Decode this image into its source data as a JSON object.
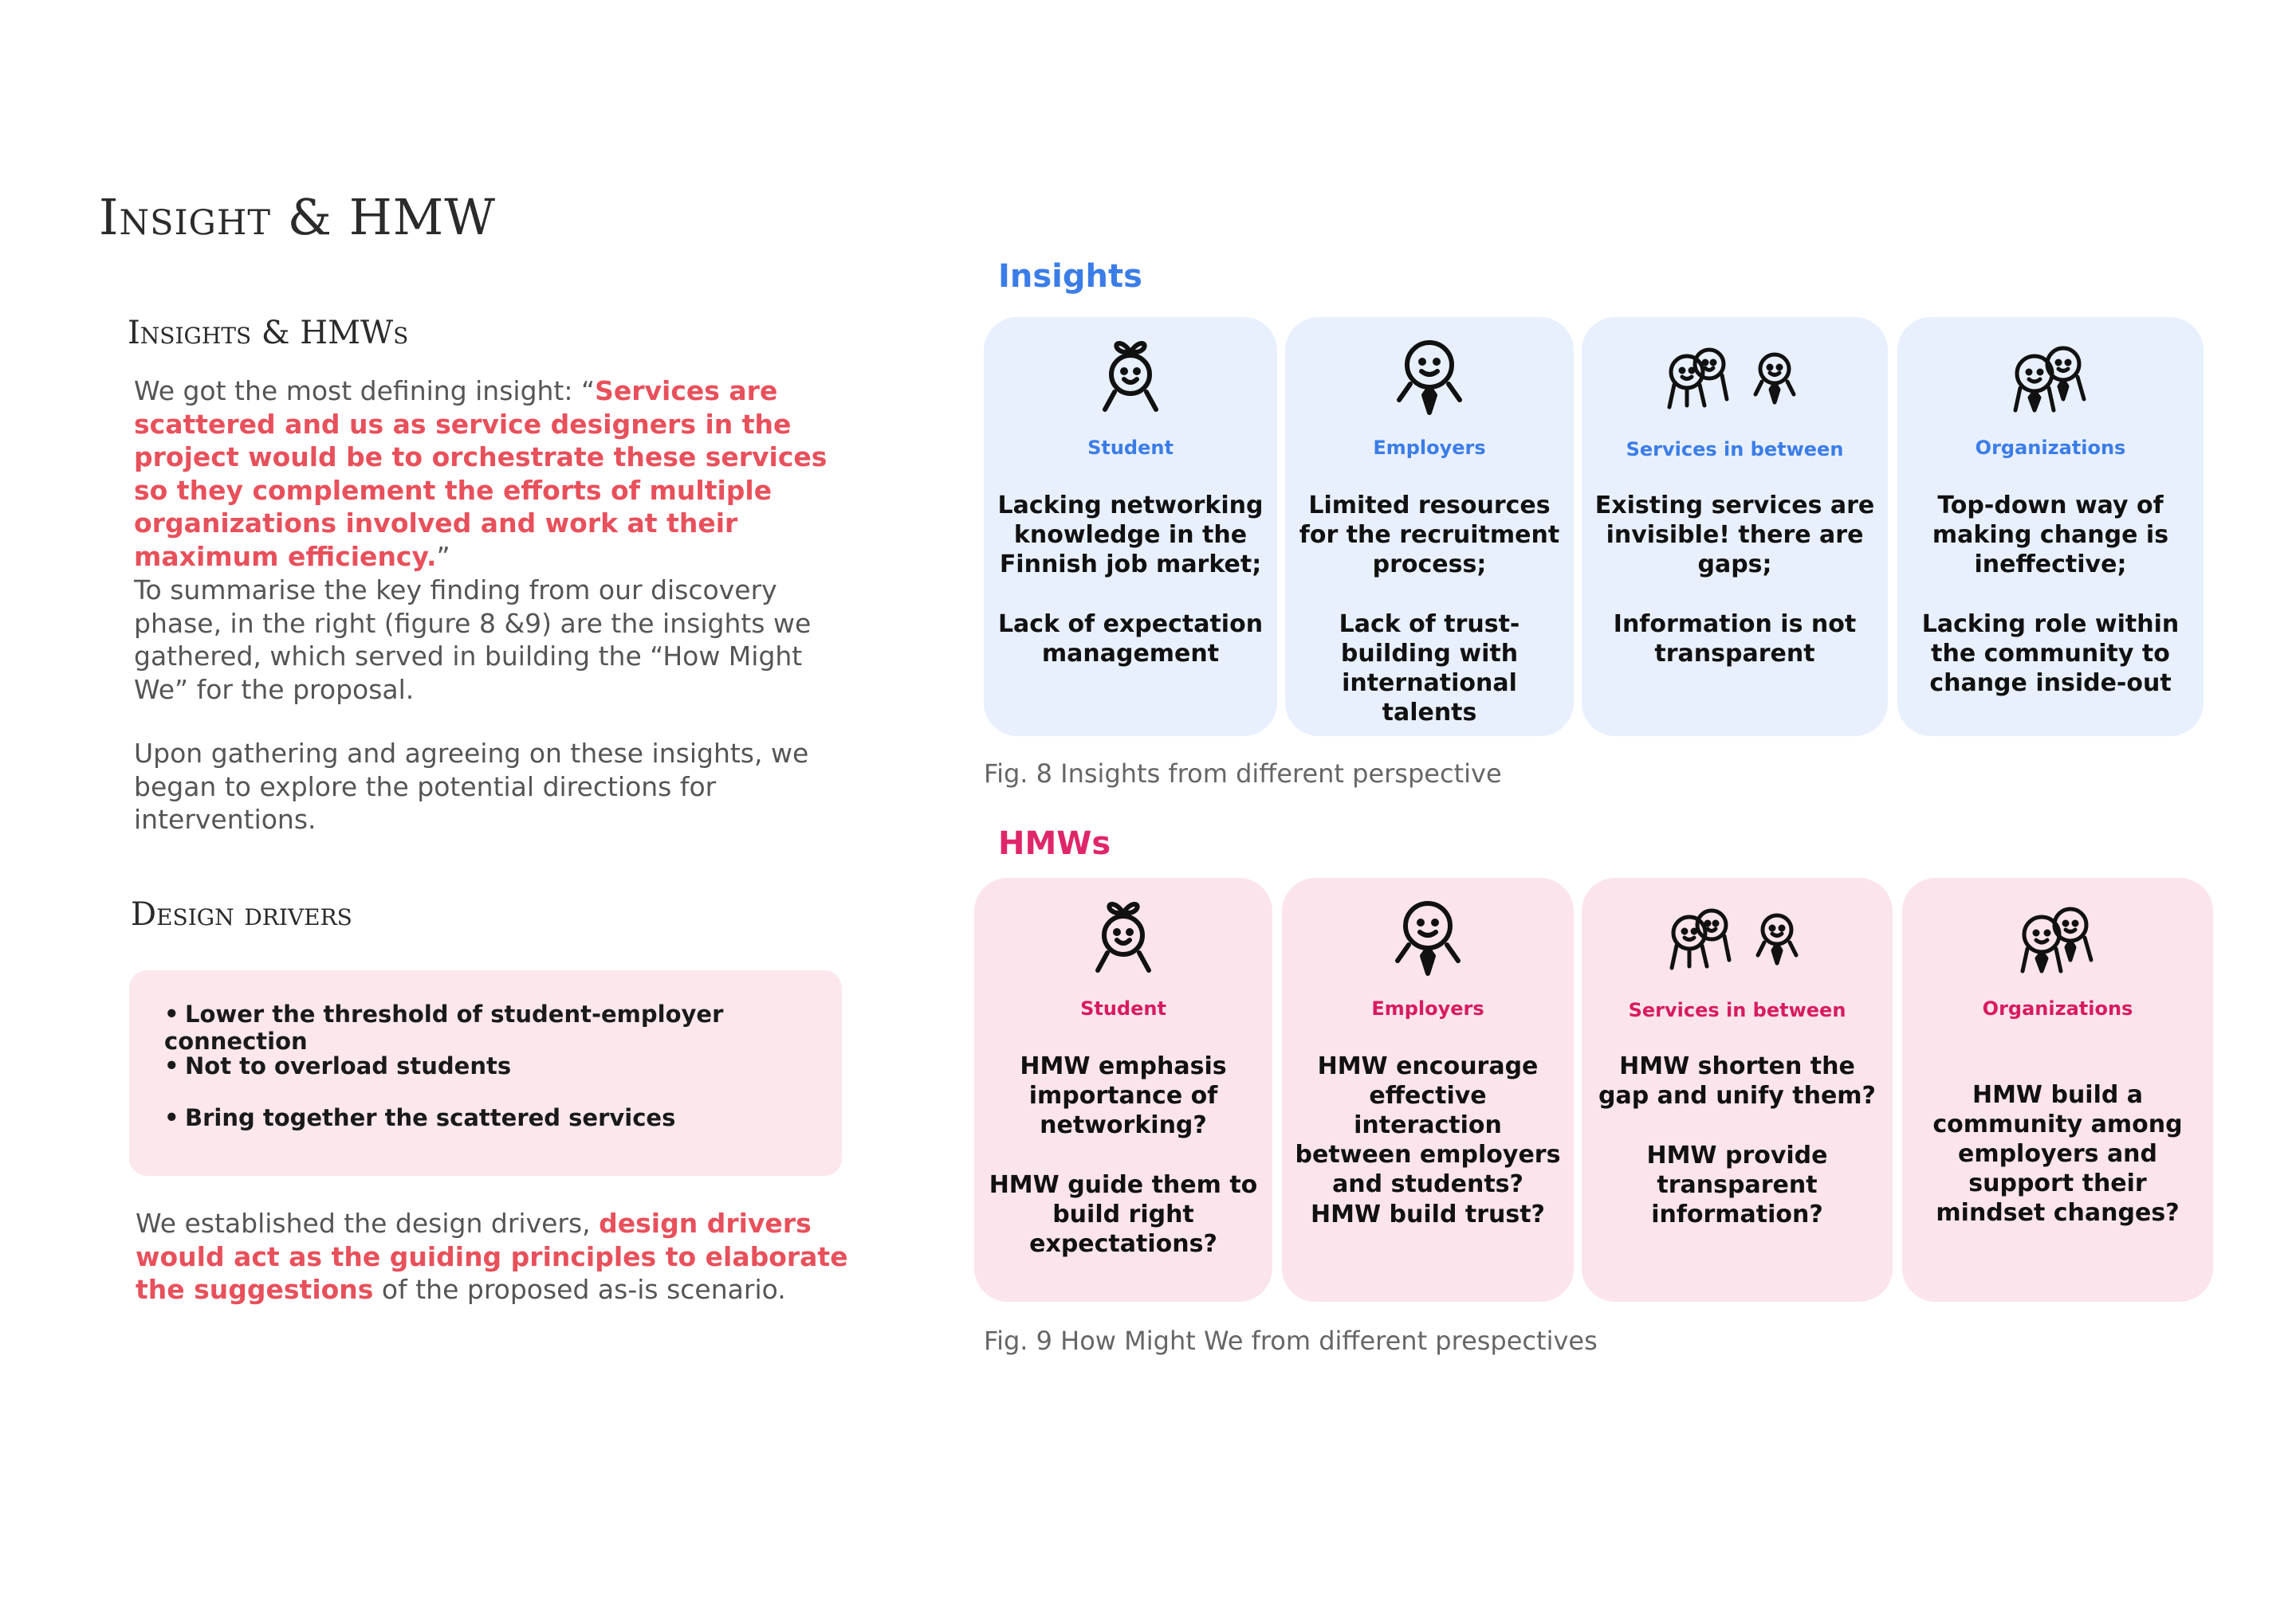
{
  "title": "Insight & HMW",
  "left": {
    "insights_heading": "Insights & HMWs",
    "para1_prefix": "We got the most defining insight: “",
    "para1_quote": "Services are scattered and us as service designers in the project would be to orchestrate these services so they complement the efforts of multiple organizations involved and work at their maximum efficiency.",
    "para1_suffix": "”",
    "para2": "To summarise the key finding from our discovery phase, in the right (figure 8 &9) are the insights we gathered, which served in building the “How Might We” for the proposal.",
    "para3": "Upon gathering and agreeing on these insights, we began to explore the potential directions for interventions.",
    "drivers_heading": "Design drivers",
    "drivers": [
      "Lower the threshold of student-employer connection",
      "Not to overload students",
      "Bring together the scattered services"
    ],
    "para4_prefix": "We established the design drivers, ",
    "para4_highlight": "design drivers would act as the guiding principles to elaborate the suggestions",
    "para4_suffix": " of the proposed as-is scenario."
  },
  "insights": {
    "label": "Insights",
    "caption": "Fig. 8 Insights from different perspective",
    "cards": [
      {
        "category": "Student",
        "icon": "student-sprout-icon",
        "text1": "Lacking networking knowledge in the Finnish job market;",
        "text2": "Lack of expectation management"
      },
      {
        "category": "Employers",
        "icon": "employer-tie-icon",
        "text1": "Limited resources for the recruitment process;",
        "text2": "Lack of trust-building with international talents"
      },
      {
        "category": "Services in between",
        "icon": "services-group-icon",
        "text1": "Existing services are invisible! there are gaps;",
        "text2": "Information is not transparent"
      },
      {
        "category": "Organizations",
        "icon": "organizations-group-icon",
        "text1": "Top-down way of making change is ineffective;",
        "text2": "Lacking role within the community to change inside-out"
      }
    ]
  },
  "hmws": {
    "label": "HMWs",
    "caption": "Fig. 9 How Might We from different prespectives",
    "cards": [
      {
        "category": "Student",
        "icon": "student-sprout-icon",
        "text1": "HMW emphasis importance of networking?",
        "text2": "HMW guide them to build right expectations?"
      },
      {
        "category": "Employers",
        "icon": "employer-tie-icon",
        "text1": "HMW encourage effective interaction between employers and students?",
        "text2": "HMW build trust?"
      },
      {
        "category": "Services in between",
        "icon": "services-group-icon",
        "text1": "HMW shorten the gap and unify them?",
        "text2": "HMW provide transparent information?"
      },
      {
        "category": "Organizations",
        "icon": "organizations-group-icon",
        "text1": "HMW build a community among employers and support their mindset changes?",
        "text2": ""
      }
    ]
  },
  "colors": {
    "insight_blue": "#3b7de8",
    "hmw_pink": "#d81b60",
    "highlight_red": "#e8505b",
    "card_blue_bg": "#e8f0fe",
    "card_pink_bg": "#fbe4ec"
  }
}
